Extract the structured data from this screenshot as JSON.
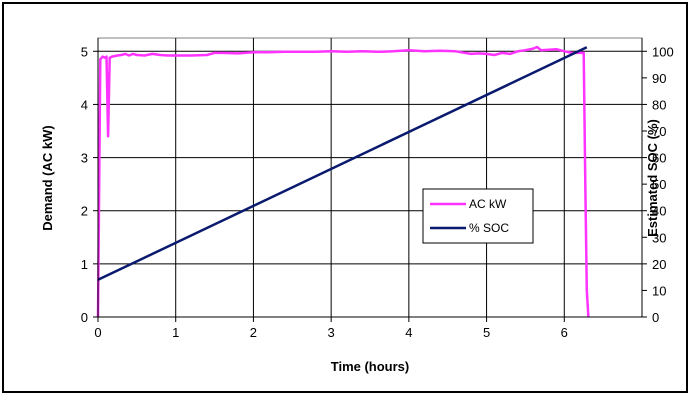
{
  "chart_data": {
    "type": "line",
    "title": "",
    "xlabel": "Time (hours)",
    "ylabel": "Demand (AC kW)",
    "y2label": "Estimated SOC (%)",
    "xlim": [
      0,
      7
    ],
    "ylim": [
      0,
      5.25
    ],
    "y2lim": [
      0,
      105
    ],
    "xticks": [
      "0",
      "1",
      "2",
      "3",
      "4",
      "5",
      "6"
    ],
    "yticks": [
      "0",
      "1",
      "2",
      "3",
      "4",
      "5"
    ],
    "y2ticks": [
      "0",
      "10",
      "20",
      "30",
      "40",
      "50",
      "60",
      "70",
      "80",
      "90",
      "100"
    ],
    "grid": true,
    "legend_position": "center-right",
    "series": [
      {
        "name": "AC kW",
        "axis": "left",
        "color": "#ff33ff",
        "x": [
          0,
          0.03,
          0.06,
          0.09,
          0.11,
          0.13,
          0.15,
          0.18,
          0.25,
          0.3,
          0.35,
          0.4,
          0.45,
          0.5,
          0.6,
          0.7,
          0.8,
          0.9,
          1.0,
          1.2,
          1.4,
          1.5,
          1.6,
          1.8,
          2.0,
          2.2,
          2.4,
          2.6,
          2.8,
          3.0,
          3.2,
          3.4,
          3.6,
          3.8,
          4.0,
          4.2,
          4.4,
          4.6,
          4.8,
          4.9,
          5.0,
          5.1,
          5.2,
          5.3,
          5.4,
          5.5,
          5.6,
          5.65,
          5.7,
          5.8,
          5.9,
          6.0,
          6.1,
          6.2,
          6.25,
          6.27,
          6.29,
          6.31
        ],
        "y": [
          0,
          4.85,
          4.9,
          4.88,
          4.9,
          3.4,
          4.88,
          4.9,
          4.92,
          4.93,
          4.95,
          4.92,
          4.95,
          4.93,
          4.92,
          4.95,
          4.93,
          4.92,
          4.92,
          4.92,
          4.93,
          4.97,
          4.97,
          4.96,
          4.98,
          4.98,
          4.99,
          4.99,
          4.99,
          5.0,
          4.99,
          5.0,
          4.99,
          5.0,
          5.02,
          5.0,
          5.01,
          5.0,
          4.95,
          4.96,
          4.95,
          4.93,
          4.97,
          4.95,
          5.0,
          5.02,
          5.05,
          5.08,
          5.02,
          5.03,
          5.04,
          5.0,
          4.97,
          4.97,
          4.97,
          2.5,
          0.5,
          0
        ]
      },
      {
        "name": "% SOC",
        "axis": "right",
        "color": "#0a1a6e",
        "x": [
          0,
          6.29
        ],
        "y": [
          14,
          101.5
        ]
      }
    ]
  }
}
